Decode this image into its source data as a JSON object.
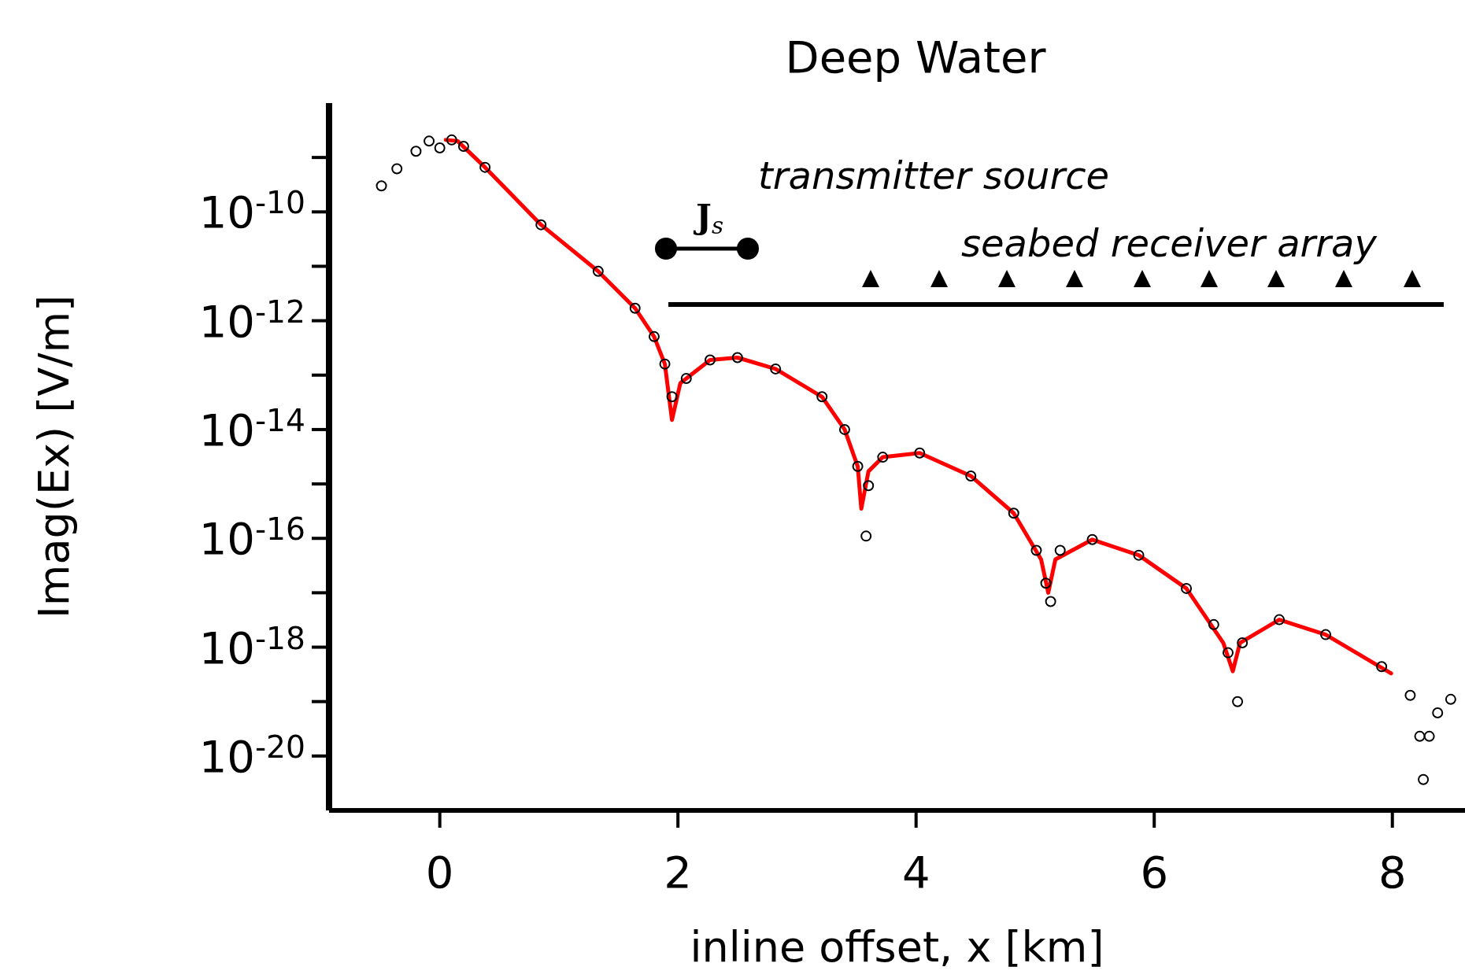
{
  "chart_data": {
    "type": "scatter",
    "title": "Deep Water",
    "xlabel": "inline offset, x [km]",
    "ylabel": "Imag(Ex) [V/m]",
    "annotations": [
      "transmitter source",
      "seabed receiver array",
      "J$_{s}$"
    ],
    "log": "y",
    "grid": false,
    "legend": false,
    "xlim": [
      -0.93,
      8.61
    ],
    "xticks": [
      0,
      2,
      4,
      6,
      8
    ],
    "ylim": [
      1e-21,
      1e-08
    ],
    "yticks": [
      {
        "value": 1e-10,
        "label": "10$^{-10}$"
      },
      {
        "value": 1e-12,
        "label": "10$^{-12}$"
      },
      {
        "value": 1e-14,
        "label": "10$^{-14}$"
      },
      {
        "value": 1e-16,
        "label": "10$^{-16}$"
      },
      {
        "value": 1e-18,
        "label": "10$^{-18}$"
      },
      {
        "value": 1e-20,
        "label": "10$^{-20}$"
      }
    ],
    "series": [
      {
        "type": "scatter",
        "color": "#000000",
        "marker": "circle",
        "x": [
          -0.49,
          -0.36,
          -0.2,
          -0.09,
          0.0,
          0.1,
          0.2,
          0.38,
          0.85,
          1.33,
          1.64,
          1.8,
          1.89,
          1.95,
          2.07,
          2.27,
          2.5,
          2.82,
          3.21,
          3.4,
          3.51,
          3.58,
          3.6,
          3.72,
          4.03,
          4.46,
          4.82,
          5.01,
          5.09,
          5.13,
          5.21,
          5.48,
          5.87,
          6.27,
          6.5,
          6.62,
          6.7,
          6.74,
          7.05,
          7.44,
          7.91,
          8.15,
          8.23,
          8.26,
          8.31,
          8.38,
          8.49
        ],
        "values": [
          3e-10,
          6.2e-10,
          1.3e-09,
          2e-09,
          1.5e-09,
          2.1e-09,
          1.6e-09,
          6.6e-10,
          5.8e-11,
          8.1e-12,
          1.7e-12,
          5.1e-13,
          1.6e-13,
          4e-14,
          8.7e-14,
          1.9e-13,
          2.1e-13,
          1.3e-13,
          4e-14,
          1e-14,
          2.1e-15,
          1.1e-16,
          9.3e-16,
          3.1e-15,
          3.7e-15,
          1.4e-15,
          2.9e-16,
          6e-17,
          1.5e-17,
          6.9e-18,
          6e-17,
          9.5e-17,
          4.9e-17,
          1.2e-17,
          2.6e-18,
          7.9e-19,
          1e-19,
          1.2e-18,
          3.2e-18,
          1.7e-18,
          4.4e-19,
          1.3e-19,
          2.3e-20,
          3.7e-21,
          2.3e-20,
          6.2e-20,
          1.1e-19
        ]
      },
      {
        "type": "line",
        "color": "#ff0000",
        "marker": "none",
        "line_style": "solid",
        "x": [
          0.05,
          0.15,
          0.38,
          0.85,
          1.33,
          1.64,
          1.8,
          1.89,
          1.95,
          2.02,
          2.27,
          2.5,
          2.82,
          3.21,
          3.4,
          3.51,
          3.54,
          3.6,
          3.72,
          4.03,
          4.46,
          4.82,
          5.05,
          5.11,
          5.17,
          5.48,
          5.87,
          6.27,
          6.58,
          6.66,
          6.72,
          7.05,
          7.44,
          7.99
        ],
        "values": [
          2.1e-09,
          2e-09,
          6.6e-10,
          5.8e-11,
          8.1e-12,
          1.7e-12,
          5.1e-13,
          1.6e-13,
          1.5e-14,
          7.1e-14,
          1.9e-13,
          2.1e-13,
          1.3e-13,
          4e-14,
          1e-14,
          2.1e-15,
          3.5e-16,
          1.7e-15,
          3.1e-15,
          3.7e-15,
          1.4e-15,
          2.9e-16,
          4.1e-17,
          1e-17,
          4.1e-17,
          9.5e-17,
          4.9e-17,
          1.2e-17,
          1.2e-18,
          3.6e-19,
          1.2e-18,
          3.2e-18,
          1.7e-18,
          3.3e-19
        ]
      }
    ]
  }
}
